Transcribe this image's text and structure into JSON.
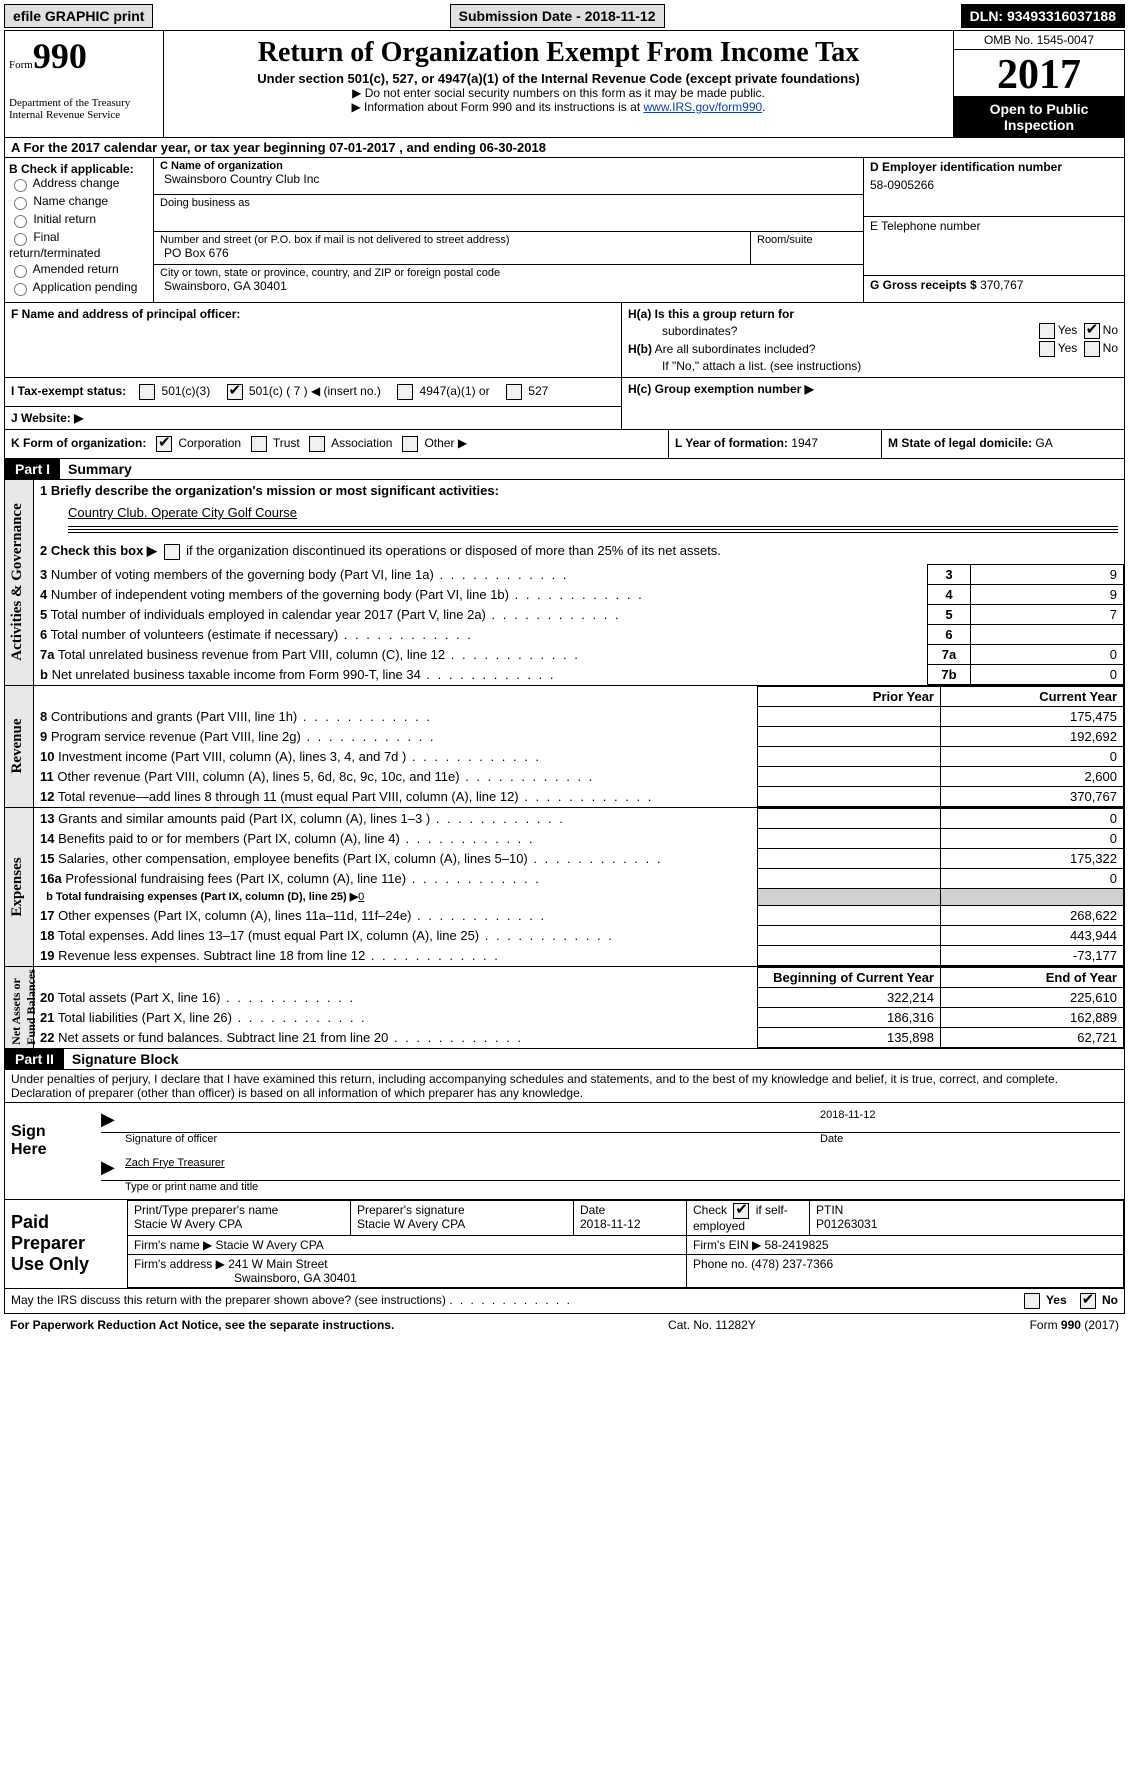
{
  "top": {
    "efile": "efile GRAPHIC print",
    "submission_label": "Submission Date -",
    "submission_date": "2018-11-12",
    "dln": "DLN: 93493316037188"
  },
  "header": {
    "form_word": "Form",
    "form_num": "990",
    "dept1": "Department of the Treasury",
    "dept2": "Internal Revenue Service",
    "title": "Return of Organization Exempt From Income Tax",
    "subtitle": "Under section 501(c), 527, or 4947(a)(1) of the Internal Revenue Code (except private foundations)",
    "note1": "▶ Do not enter social security numbers on this form as it may be made public.",
    "note2_pre": "▶ Information about Form 990 and its instructions is at ",
    "note2_link": "www.IRS.gov/form990",
    "omb": "OMB No. 1545-0047",
    "year": "2017",
    "open1": "Open to Public",
    "open2": "Inspection"
  },
  "rowA": {
    "label_pre": "A  For the 2017 calendar year, or tax year beginning ",
    "begin": "07-01-2017",
    "mid": "  , and ending ",
    "end": "06-30-2018"
  },
  "colB": {
    "label": "B Check if applicable:",
    "opts": [
      "Address change",
      "Name change",
      "Initial return",
      "Final return/terminated",
      "Amended return",
      "Application pending"
    ]
  },
  "colC": {
    "name_lbl": "C Name of organization",
    "name": "Swainsboro Country Club Inc",
    "dba_lbl": "Doing business as",
    "dba": "",
    "street_lbl": "Number and street (or P.O. box if mail is not delivered to street address)",
    "street": "PO Box 676",
    "room_lbl": "Room/suite",
    "room": "",
    "city_lbl": "City or town, state or province, country, and ZIP or foreign postal code",
    "city": "Swainsboro, GA  30401"
  },
  "colD": {
    "ein_lbl": "D Employer identification number",
    "ein": "58-0905266",
    "tel_lbl": "E Telephone number",
    "tel": "",
    "gross_lbl": "G Gross receipts $",
    "gross": "370,767"
  },
  "boxF": {
    "label": "F Name and address of principal officer:",
    "value": ""
  },
  "boxH": {
    "ha": "H(a)  Is this a group return for",
    "ha2": "subordinates?",
    "hb": "H(b)  Are all subordinates included?",
    "hb2": "If \"No,\" attach a list. (see instructions)",
    "hc": "H(c)  Group exemption number ▶",
    "yes": "Yes",
    "no": "No",
    "ha_checked": "No",
    "hb_checked": ""
  },
  "rowI": {
    "label": "I  Tax-exempt status:",
    "opt1": "501(c)(3)",
    "opt2": "501(c) (",
    "opt2_val": "7",
    "opt2_suf": ") ◀ (insert no.)",
    "opt3": "4947(a)(1) or",
    "opt4": "527",
    "checked": 2
  },
  "rowJ": {
    "label": "J  Website: ▶",
    "value": ""
  },
  "rowK": {
    "label": "K Form of organization:",
    "opts": [
      "Corporation",
      "Trust",
      "Association",
      "Other ▶"
    ],
    "checked": 0
  },
  "rowL": {
    "label": "L Year of formation:",
    "value": "1947"
  },
  "rowM": {
    "label": "M State of legal domicile:",
    "value": "GA"
  },
  "parts": {
    "p1": "Part I",
    "p1_title": "Summary",
    "p2": "Part II",
    "p2_title": "Signature Block"
  },
  "side": {
    "ag": "Activities & Governance",
    "rev": "Revenue",
    "exp": "Expenses",
    "net": "Net Assets or\nFund Balances"
  },
  "summary": {
    "l1": "1  Briefly describe the organization's mission or most significant activities:",
    "l1_text": "Country Club. Operate City Golf Course",
    "l2_pre": "2  Check this box ▶ ",
    "l2_post": " if the organization discontinued its operations or disposed of more than 25% of its net assets.",
    "rows3_7": [
      {
        "n": "3",
        "txt": "Number of voting members of the governing body (Part VI, line 1a)",
        "num": "3",
        "val": "9"
      },
      {
        "n": "4",
        "txt": "Number of independent voting members of the governing body (Part VI, line 1b)",
        "num": "4",
        "val": "9"
      },
      {
        "n": "5",
        "txt": "Total number of individuals employed in calendar year 2017 (Part V, line 2a)",
        "num": "5",
        "val": "7"
      },
      {
        "n": "6",
        "txt": "Total number of volunteers (estimate if necessary)",
        "num": "6",
        "val": ""
      },
      {
        "n": "7a",
        "txt": "Total unrelated business revenue from Part VIII, column (C), line 12",
        "num": "7a",
        "val": "0"
      },
      {
        "n": "b",
        "txt": "Net unrelated business taxable income from Form 990-T, line 34",
        "num": "7b",
        "val": "0"
      }
    ],
    "hdr_prior": "Prior Year",
    "hdr_current": "Current Year",
    "revenue_rows": [
      {
        "n": "8",
        "txt": "Contributions and grants (Part VIII, line 1h)",
        "prior": "",
        "cur": "175,475"
      },
      {
        "n": "9",
        "txt": "Program service revenue (Part VIII, line 2g)",
        "prior": "",
        "cur": "192,692"
      },
      {
        "n": "10",
        "txt": "Investment income (Part VIII, column (A), lines 3, 4, and 7d )",
        "prior": "",
        "cur": "0"
      },
      {
        "n": "11",
        "txt": "Other revenue (Part VIII, column (A), lines 5, 6d, 8c, 9c, 10c, and 11e)",
        "prior": "",
        "cur": "2,600"
      },
      {
        "n": "12",
        "txt": "Total revenue—add lines 8 through 11 (must equal Part VIII, column (A), line 12)",
        "prior": "",
        "cur": "370,767"
      }
    ],
    "exp_rows": [
      {
        "n": "13",
        "txt": "Grants and similar amounts paid (Part IX, column (A), lines 1–3 )",
        "prior": "",
        "cur": "0"
      },
      {
        "n": "14",
        "txt": "Benefits paid to or for members (Part IX, column (A), line 4)",
        "prior": "",
        "cur": "0"
      },
      {
        "n": "15",
        "txt": "Salaries, other compensation, employee benefits (Part IX, column (A), lines 5–10)",
        "prior": "",
        "cur": "175,322"
      },
      {
        "n": "16a",
        "txt": "Professional fundraising fees (Part IX, column (A), line 11e)",
        "prior": "",
        "cur": "0"
      }
    ],
    "exp_16b_pre": "b  Total fundraising expenses (Part IX, column (D), line 25) ▶",
    "exp_16b_val": "0",
    "exp_rows2": [
      {
        "n": "17",
        "txt": "Other expenses (Part IX, column (A), lines 11a–11d, 11f–24e)",
        "prior": "",
        "cur": "268,622"
      },
      {
        "n": "18",
        "txt": "Total expenses. Add lines 13–17 (must equal Part IX, column (A), line 25)",
        "prior": "",
        "cur": "443,944"
      },
      {
        "n": "19",
        "txt": "Revenue less expenses. Subtract line 18 from line 12",
        "prior": "",
        "cur": "-73,177"
      }
    ],
    "hdr_begin": "Beginning of Current Year",
    "hdr_end": "End of Year",
    "net_rows": [
      {
        "n": "20",
        "txt": "Total assets (Part X, line 16)",
        "prior": "322,214",
        "cur": "225,610"
      },
      {
        "n": "21",
        "txt": "Total liabilities (Part X, line 26)",
        "prior": "186,316",
        "cur": "162,889"
      },
      {
        "n": "22",
        "txt": "Net assets or fund balances. Subtract line 21 from line 20",
        "prior": "135,898",
        "cur": "62,721"
      }
    ]
  },
  "sig": {
    "decl": "Under penalties of perjury, I declare that I have examined this return, including accompanying schedules and statements, and to the best of my knowledge and belief, it is true, correct, and complete. Declaration of preparer (other than officer) is based on all information of which preparer has any knowledge.",
    "sign_here": "Sign\nHere",
    "sig_officer": "Signature of officer",
    "sig_date": "2018-11-12",
    "date_lbl": "Date",
    "name_title_val": "Zach Frye Treasurer",
    "name_title": "Type or print name and title"
  },
  "prep": {
    "label": "Paid\nPreparer\nUse Only",
    "r1c1_lbl": "Print/Type preparer's name",
    "r1c1": "Stacie W Avery CPA",
    "r1c2_lbl": "Preparer's signature",
    "r1c2": "Stacie W Avery CPA",
    "r1c3_lbl": "Date",
    "r1c3": "2018-11-12",
    "r1c4_lbl": "Check",
    "r1c4_suf": "if self-employed",
    "r1c5_lbl": "PTIN",
    "r1c5": "P01263031",
    "r2_lbl": "Firm's name    ▶",
    "r2": "Stacie W Avery CPA",
    "r2b_lbl": "Firm's EIN ▶",
    "r2b": "58-2419825",
    "r3_lbl": "Firm's address ▶",
    "r3": "241 W Main Street",
    "r3b": "Swainsboro, GA  30401",
    "r3_phone_lbl": "Phone no.",
    "r3_phone": "(478) 237-7366"
  },
  "irs_discuss": {
    "text": "May the IRS discuss this return with the preparer shown above? (see instructions)",
    "yes": "Yes",
    "no": "No",
    "checked": "No"
  },
  "footer": {
    "left": "For Paperwork Reduction Act Notice, see the separate instructions.",
    "mid": "Cat. No. 11282Y",
    "right_pre": "Form ",
    "right_form": "990",
    "right_suf": " (2017)"
  }
}
